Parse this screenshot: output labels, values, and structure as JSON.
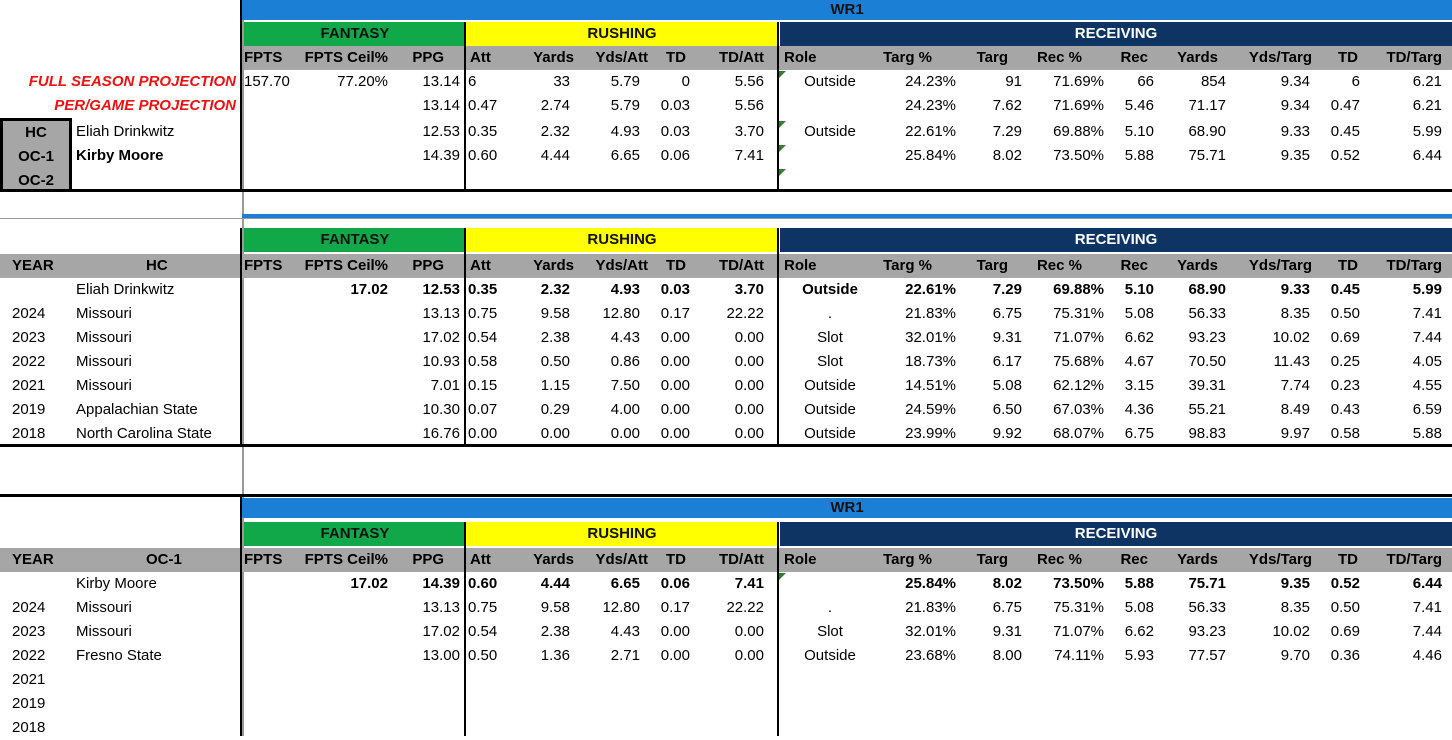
{
  "colors": {
    "band": "#1b7fd6",
    "fantasy": "#11a84a",
    "rushing": "#ffff00",
    "receiving": "#0d3463",
    "projection": "#e11",
    "header_gray": "#a6a6a6"
  },
  "band_title": "WR1",
  "section_titles": {
    "fantasy": "FANTASY",
    "rushing": "RUSHING",
    "receiving": "RECEIVING"
  },
  "columns": [
    "FPTS",
    "FPTS Ceil%",
    "PPG",
    "Att",
    "Yards",
    "Yds/Att",
    "TD",
    "TD/Att",
    "Role",
    "Targ %",
    "Targ",
    "Rec %",
    "Rec",
    "Yards",
    "Yds/Targ",
    "TD",
    "TD/Targ"
  ],
  "top": {
    "full_season_label": "FULL SEASON PROJECTION",
    "per_game_label": "PER/GAME PROJECTION",
    "staff_labels": [
      "HC",
      "OC-1",
      "OC-2"
    ],
    "rows": [
      [
        "157.70",
        "77.20%",
        "13.14",
        "6",
        "33",
        "5.79",
        "0",
        "5.56",
        "Outside",
        "24.23%",
        "91",
        "71.69%",
        "66",
        "854",
        "9.34",
        "6",
        "6.21"
      ],
      [
        "",
        "",
        "13.14",
        "0.47",
        "2.74",
        "5.79",
        "0.03",
        "5.56",
        "",
        "24.23%",
        "7.62",
        "71.69%",
        "5.46",
        "71.17",
        "9.34",
        "0.47",
        "6.21"
      ],
      [
        "",
        "",
        "12.53",
        "0.35",
        "2.32",
        "4.93",
        "0.03",
        "3.70",
        "Outside",
        "22.61%",
        "7.29",
        "69.88%",
        "5.10",
        "68.90",
        "9.33",
        "0.45",
        "5.99"
      ],
      [
        "",
        "",
        "14.39",
        "0.60",
        "4.44",
        "6.65",
        "0.06",
        "7.41",
        "",
        "25.84%",
        "8.02",
        "73.50%",
        "5.88",
        "75.71",
        "9.35",
        "0.52",
        "6.44"
      ]
    ],
    "hc_name": "Eliah Drinkwitz",
    "oc1_name": "Kirby Moore"
  },
  "hc_table": {
    "year_label": "YEAR",
    "name_label": "HC",
    "summary": {
      "name": "Eliah Drinkwitz",
      "values": [
        "",
        "17.02",
        "12.53",
        "0.35",
        "2.32",
        "4.93",
        "0.03",
        "3.70",
        "Outside",
        "22.61%",
        "7.29",
        "69.88%",
        "5.10",
        "68.90",
        "9.33",
        "0.45",
        "5.99"
      ]
    },
    "rows": [
      {
        "year": "2024",
        "team": "Missouri",
        "values": [
          "",
          "",
          "13.13",
          "0.75",
          "9.58",
          "12.80",
          "0.17",
          "22.22",
          ".",
          "21.83%",
          "6.75",
          "75.31%",
          "5.08",
          "56.33",
          "8.35",
          "0.50",
          "7.41"
        ]
      },
      {
        "year": "2023",
        "team": "Missouri",
        "values": [
          "",
          "",
          "17.02",
          "0.54",
          "2.38",
          "4.43",
          "0.00",
          "0.00",
          "Slot",
          "32.01%",
          "9.31",
          "71.07%",
          "6.62",
          "93.23",
          "10.02",
          "0.69",
          "7.44"
        ]
      },
      {
        "year": "2022",
        "team": "Missouri",
        "values": [
          "",
          "",
          "10.93",
          "0.58",
          "0.50",
          "0.86",
          "0.00",
          "0.00",
          "Slot",
          "18.73%",
          "6.17",
          "75.68%",
          "4.67",
          "70.50",
          "11.43",
          "0.25",
          "4.05"
        ]
      },
      {
        "year": "2021",
        "team": "Missouri",
        "values": [
          "",
          "",
          "7.01",
          "0.15",
          "1.15",
          "7.50",
          "0.00",
          "0.00",
          "Outside",
          "14.51%",
          "5.08",
          "62.12%",
          "3.15",
          "39.31",
          "7.74",
          "0.23",
          "4.55"
        ]
      },
      {
        "year": "2019",
        "team": "Appalachian State",
        "values": [
          "",
          "",
          "10.30",
          "0.07",
          "0.29",
          "4.00",
          "0.00",
          "0.00",
          "Outside",
          "24.59%",
          "6.50",
          "67.03%",
          "4.36",
          "55.21",
          "8.49",
          "0.43",
          "6.59"
        ]
      },
      {
        "year": "2018",
        "team": "North Carolina State",
        "values": [
          "",
          "",
          "16.76",
          "0.00",
          "0.00",
          "0.00",
          "0.00",
          "0.00",
          "Outside",
          "23.99%",
          "9.92",
          "68.07%",
          "6.75",
          "98.83",
          "9.97",
          "0.58",
          "5.88"
        ]
      }
    ]
  },
  "oc_table": {
    "year_label": "YEAR",
    "name_label": "OC-1",
    "summary": {
      "name": "Kirby Moore",
      "values": [
        "",
        "17.02",
        "14.39",
        "0.60",
        "4.44",
        "6.65",
        "0.06",
        "7.41",
        "",
        "25.84%",
        "8.02",
        "73.50%",
        "5.88",
        "75.71",
        "9.35",
        "0.52",
        "6.44"
      ]
    },
    "rows": [
      {
        "year": "2024",
        "team": "Missouri",
        "values": [
          "",
          "",
          "13.13",
          "0.75",
          "9.58",
          "12.80",
          "0.17",
          "22.22",
          ".",
          "21.83%",
          "6.75",
          "75.31%",
          "5.08",
          "56.33",
          "8.35",
          "0.50",
          "7.41"
        ]
      },
      {
        "year": "2023",
        "team": "Missouri",
        "values": [
          "",
          "",
          "17.02",
          "0.54",
          "2.38",
          "4.43",
          "0.00",
          "0.00",
          "Slot",
          "32.01%",
          "9.31",
          "71.07%",
          "6.62",
          "93.23",
          "10.02",
          "0.69",
          "7.44"
        ]
      },
      {
        "year": "2022",
        "team": "Fresno State",
        "values": [
          "",
          "",
          "13.00",
          "0.50",
          "1.36",
          "2.71",
          "0.00",
          "0.00",
          "Outside",
          "23.68%",
          "8.00",
          "74.11%",
          "5.93",
          "77.57",
          "9.70",
          "0.36",
          "4.46"
        ]
      },
      {
        "year": "2021",
        "team": "",
        "values": [
          "",
          "",
          "",
          "",
          "",
          "",
          "",
          "",
          "",
          "",
          "",
          "",
          "",
          "",
          "",
          "",
          ""
        ]
      },
      {
        "year": "2019",
        "team": "",
        "values": [
          "",
          "",
          "",
          "",
          "",
          "",
          "",
          "",
          "",
          "",
          "",
          "",
          "",
          "",
          "",
          "",
          ""
        ]
      },
      {
        "year": "2018",
        "team": "",
        "values": [
          "",
          "",
          "",
          "",
          "",
          "",
          "",
          "",
          "",
          "",
          "",
          "",
          "",
          "",
          "",
          "",
          ""
        ]
      }
    ]
  }
}
